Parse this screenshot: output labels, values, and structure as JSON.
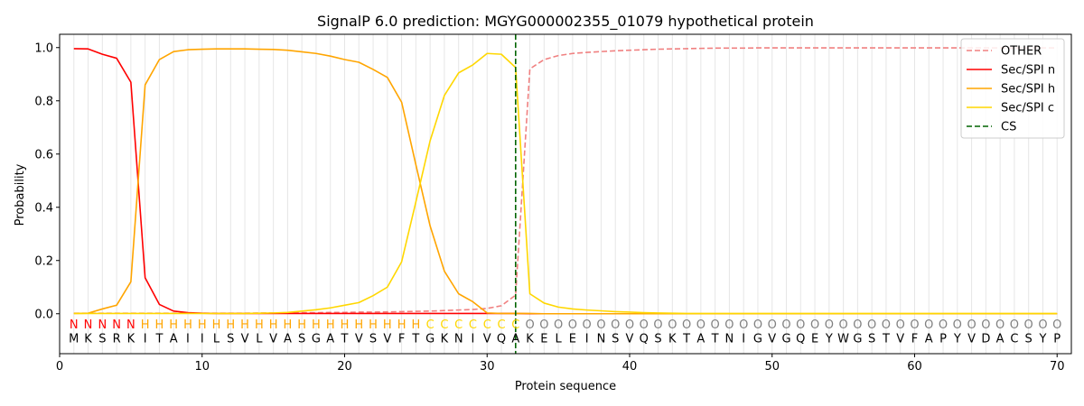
{
  "chart_data": {
    "type": "line",
    "title": "SignalP 6.0 prediction: MGYG000002355_01079 hypothetical protein",
    "xlabel": "Protein sequence",
    "ylabel": "Probability",
    "xlim": [
      0,
      71
    ],
    "ylim": [
      -0.15,
      1.05
    ],
    "x_ticks": [
      0,
      10,
      20,
      30,
      40,
      50,
      60,
      70
    ],
    "y_ticks": [
      0.0,
      0.2,
      0.4,
      0.6,
      0.8,
      1.0
    ],
    "x_tick_labels": [
      "0",
      "10",
      "20",
      "30",
      "40",
      "50",
      "60",
      "70"
    ],
    "y_tick_labels": [
      "0.0",
      "0.2",
      "0.4",
      "0.6",
      "0.8",
      "1.0"
    ],
    "grid": "vertical lines at each residue",
    "legend_position": "top-right",
    "sequence": [
      "M",
      "K",
      "S",
      "R",
      "K",
      "I",
      "T",
      "A",
      "I",
      "I",
      "L",
      "S",
      "V",
      "L",
      "V",
      "A",
      "S",
      "G",
      "A",
      "T",
      "V",
      "S",
      "V",
      "F",
      "T",
      "G",
      "K",
      "N",
      "I",
      "V",
      "Q",
      "A",
      "K",
      "E",
      "L",
      "E",
      "I",
      "N",
      "S",
      "V",
      "Q",
      "S",
      "K",
      "T",
      "A",
      "T",
      "N",
      "I",
      "G",
      "V",
      "G",
      "Q",
      "E",
      "Y",
      "W",
      "G",
      "S",
      "T",
      "V",
      "F",
      "A",
      "P",
      "Y",
      "V",
      "D",
      "A",
      "C",
      "S",
      "Y",
      "P"
    ],
    "labels": [
      "N",
      "N",
      "N",
      "N",
      "N",
      "H",
      "H",
      "H",
      "H",
      "H",
      "H",
      "H",
      "H",
      "H",
      "H",
      "H",
      "H",
      "H",
      "H",
      "H",
      "H",
      "H",
      "H",
      "H",
      "H",
      "C",
      "C",
      "C",
      "C",
      "C",
      "C",
      "C",
      "O",
      "O",
      "O",
      "O",
      "O",
      "O",
      "O",
      "O",
      "O",
      "O",
      "O",
      "O",
      "O",
      "O",
      "O",
      "O",
      "O",
      "O",
      "O",
      "O",
      "O",
      "O",
      "O",
      "O",
      "O",
      "O",
      "O",
      "O",
      "O",
      "O",
      "O",
      "O",
      "O",
      "O",
      "O",
      "O",
      "O",
      "O"
    ],
    "label_colors": {
      "N": "#ff0000",
      "H": "#ffa500",
      "C": "#ffd700",
      "O": "#808080"
    },
    "cleavage_site": 32,
    "series": [
      {
        "name": "OTHER",
        "color": "#f08080",
        "style": "dashed",
        "values": [
          0.002,
          0.002,
          0.002,
          0.002,
          0.002,
          0.002,
          0.002,
          0.002,
          0.002,
          0.002,
          0.002,
          0.002,
          0.002,
          0.003,
          0.003,
          0.003,
          0.004,
          0.004,
          0.005,
          0.005,
          0.006,
          0.006,
          0.007,
          0.008,
          0.009,
          0.01,
          0.012,
          0.014,
          0.016,
          0.02,
          0.03,
          0.07,
          0.92,
          0.955,
          0.97,
          0.978,
          0.982,
          0.985,
          0.988,
          0.99,
          0.992,
          0.994,
          0.995,
          0.996,
          0.997,
          0.998,
          0.998,
          0.998,
          0.999,
          0.999,
          0.999,
          0.999,
          0.999,
          0.999,
          0.999,
          0.999,
          0.999,
          0.999,
          0.999,
          0.999,
          0.999,
          0.999,
          0.999,
          0.999,
          0.999,
          0.999,
          0.999,
          0.999,
          0.999,
          0.999
        ]
      },
      {
        "name": "Sec/SPI n",
        "color": "#ff0000",
        "style": "solid",
        "values": [
          0.996,
          0.995,
          0.975,
          0.96,
          0.87,
          0.135,
          0.035,
          0.01,
          0.004,
          0.002,
          0.001,
          0.001,
          0.001,
          0.001,
          0.001,
          0.001,
          0.001,
          0.001,
          0.001,
          0.001,
          0.001,
          0.001,
          0.001,
          0.001,
          0.001,
          0.001,
          0.001,
          0.001,
          0.001,
          0.001,
          0.001,
          0.001,
          0.0,
          0.0,
          0.0,
          0.0,
          0.0,
          0.0,
          0.0,
          0.0,
          0.0,
          0.0,
          0.0,
          0.0,
          0.0,
          0.0,
          0.0,
          0.0,
          0.0,
          0.0,
          0.0,
          0.0,
          0.0,
          0.0,
          0.0,
          0.0,
          0.0,
          0.0,
          0.0,
          0.0,
          0.0,
          0.0,
          0.0,
          0.0,
          0.0,
          0.0,
          0.0,
          0.0,
          0.0,
          0.0
        ]
      },
      {
        "name": "Sec/SPI h",
        "color": "#ffa500",
        "style": "solid",
        "values": [
          0.001,
          0.002,
          0.018,
          0.032,
          0.12,
          0.86,
          0.955,
          0.985,
          0.992,
          0.994,
          0.995,
          0.995,
          0.995,
          0.994,
          0.993,
          0.99,
          0.984,
          0.978,
          0.968,
          0.955,
          0.945,
          0.918,
          0.888,
          0.795,
          0.56,
          0.33,
          0.16,
          0.075,
          0.045,
          0.003,
          0.001,
          0.001,
          0.001,
          0.0,
          0.0,
          0.0,
          0.0,
          0.0,
          0.0,
          0.0,
          0.0,
          0.0,
          0.0,
          0.0,
          0.0,
          0.0,
          0.0,
          0.0,
          0.0,
          0.0,
          0.0,
          0.0,
          0.0,
          0.0,
          0.0,
          0.0,
          0.0,
          0.0,
          0.0,
          0.0,
          0.0,
          0.0,
          0.0,
          0.0,
          0.0,
          0.0,
          0.0,
          0.0,
          0.0,
          0.0
        ]
      },
      {
        "name": "Sec/SPI c",
        "color": "#ffd700",
        "style": "solid",
        "values": [
          0.001,
          0.001,
          0.001,
          0.001,
          0.001,
          0.001,
          0.001,
          0.001,
          0.001,
          0.001,
          0.001,
          0.001,
          0.001,
          0.002,
          0.003,
          0.005,
          0.01,
          0.015,
          0.022,
          0.032,
          0.042,
          0.068,
          0.1,
          0.195,
          0.42,
          0.65,
          0.82,
          0.905,
          0.935,
          0.978,
          0.975,
          0.925,
          0.075,
          0.04,
          0.025,
          0.018,
          0.014,
          0.011,
          0.008,
          0.006,
          0.004,
          0.003,
          0.002,
          0.001,
          0.001,
          0.001,
          0.001,
          0.001,
          0.001,
          0.001,
          0.001,
          0.001,
          0.001,
          0.001,
          0.001,
          0.001,
          0.001,
          0.001,
          0.001,
          0.001,
          0.001,
          0.001,
          0.001,
          0.001,
          0.001,
          0.001,
          0.001,
          0.001,
          0.001,
          0.001
        ]
      }
    ],
    "legend": [
      {
        "name": "OTHER",
        "color": "#f08080",
        "style": "dashed"
      },
      {
        "name": "Sec/SPI n",
        "color": "#ff0000",
        "style": "solid"
      },
      {
        "name": "Sec/SPI h",
        "color": "#ffa500",
        "style": "solid"
      },
      {
        "name": "Sec/SPI c",
        "color": "#ffd700",
        "style": "solid"
      },
      {
        "name": "CS",
        "color": "#006400",
        "style": "dashed"
      }
    ]
  }
}
